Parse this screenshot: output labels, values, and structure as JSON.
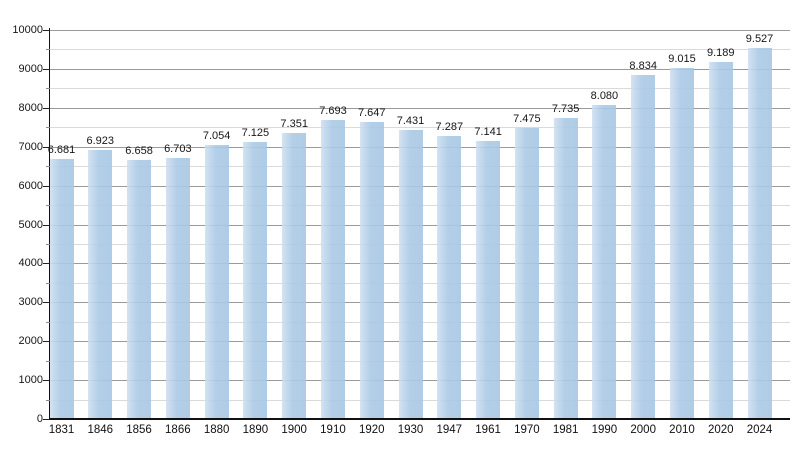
{
  "chart": {
    "background": "#ffffff",
    "bar_color": "#abc9e5",
    "bar_gradient_left": "#cddff0",
    "gridline_major_color": "#9a9a9a",
    "gridline_minor_color": "#dadada",
    "axis_color": "#111111",
    "text_color": "#161616"
  },
  "chart_data": {
    "type": "bar",
    "title": "",
    "xlabel": "",
    "ylabel": "",
    "categories": [
      "1831",
      "1846",
      "1856",
      "1866",
      "1880",
      "1890",
      "1900",
      "1910",
      "1920",
      "1930",
      "1947",
      "1961",
      "1970",
      "1981",
      "1990",
      "2000",
      "2010",
      "2020",
      "2024"
    ],
    "values": [
      6681,
      6923,
      6658,
      6703,
      7054,
      7125,
      7351,
      7693,
      7647,
      7431,
      7287,
      7141,
      7475,
      7735,
      8080,
      8834,
      9015,
      9189,
      9527
    ],
    "value_labels": [
      "6.681",
      "6.923",
      "6.658",
      "6.703",
      "7.054",
      "7.125",
      "7.351",
      "7.693",
      "7.647",
      "7.431",
      "7.287",
      "7.141",
      "7.475",
      "7.735",
      "8.080",
      "8.834",
      "9.015",
      "9.189",
      "9.527"
    ],
    "ylim": [
      0,
      10000
    ],
    "ytick_interval": 1000,
    "yminor_interval": 500,
    "yticks": [
      "0",
      "1000",
      "2000",
      "3000",
      "4000",
      "5000",
      "6000",
      "7000",
      "8000",
      "9000",
      "10000"
    ],
    "grid": "on",
    "legend": "none"
  }
}
